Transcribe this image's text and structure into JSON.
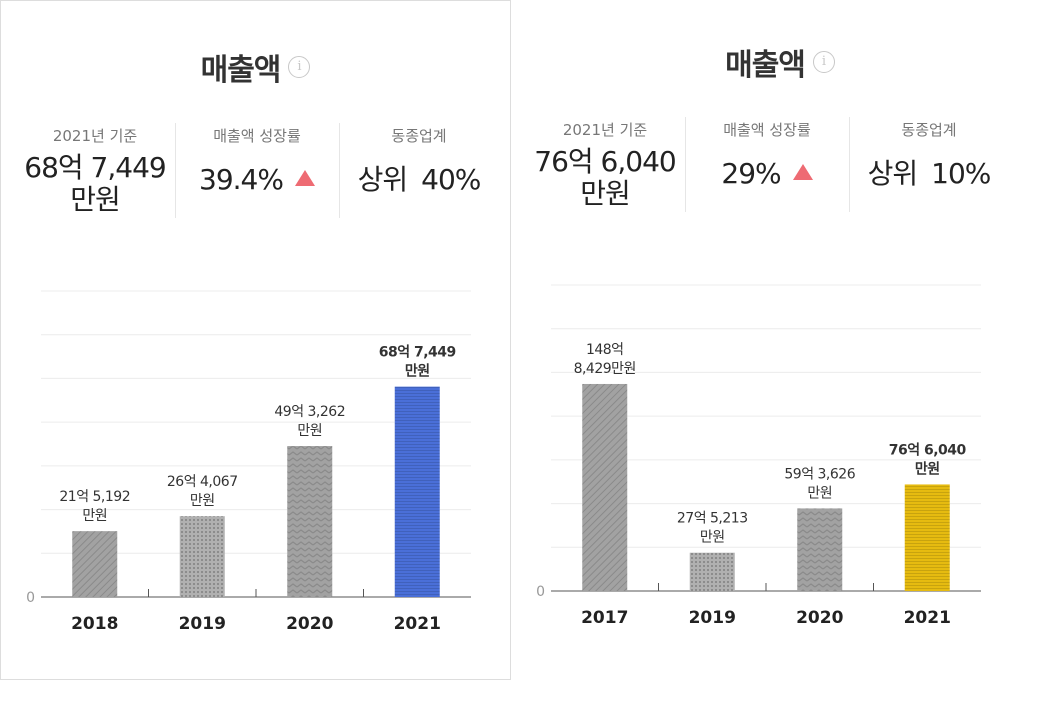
{
  "panels": [
    {
      "title": "매출액",
      "stats": {
        "base_label": "2021년 기준",
        "base_value": [
          "68억 7,449",
          "만원"
        ],
        "growth_label": "매출액 성장률",
        "growth_value": "39.4%",
        "rank_label": "동종업계",
        "rank_prefix": "상위",
        "rank_value": "40%"
      }
    },
    {
      "title": "매출액",
      "stats": {
        "base_label": "2021년 기준",
        "base_value": [
          "76억 6,040",
          "만원"
        ],
        "growth_label": "매출액 성장률",
        "growth_value": "29%",
        "rank_label": "동종업계",
        "rank_prefix": "상위",
        "rank_value": "10%"
      }
    }
  ],
  "chart_data": [
    {
      "type": "bar",
      "categories": [
        "2018",
        "2019",
        "2020",
        "2021"
      ],
      "values": [
        215192,
        264067,
        493262,
        687449
      ],
      "value_labels": [
        [
          "21억 5,192",
          "만원"
        ],
        [
          "26억 4,067",
          "만원"
        ],
        [
          "49억 3,262",
          "만원"
        ],
        [
          "68억 7,449",
          "만원"
        ]
      ],
      "unit": "만원",
      "y_tick_labels": [
        "0"
      ],
      "ylim": [
        0,
        1000000
      ],
      "grid": true,
      "highlight_index": 3,
      "colors": {
        "normal": "#a2a2a2",
        "highlight": "#4a6fd8",
        "highlight_label": "#4a6fd8"
      },
      "patterns": [
        "diagonal",
        "dots",
        "zigzag",
        "horizontal-lines"
      ]
    },
    {
      "type": "bar",
      "categories": [
        "2017",
        "2019",
        "2020",
        "2021"
      ],
      "values": [
        1488429,
        275213,
        593626,
        766040
      ],
      "value_labels": [
        [
          "148억",
          "8,429만원"
        ],
        [
          "27억 5,213",
          "만원"
        ],
        [
          "59억 3,626",
          "만원"
        ],
        [
          "76억 6,040",
          "만원"
        ]
      ],
      "unit": "만원",
      "y_tick_labels": [
        "0"
      ],
      "ylim": [
        0,
        2200000
      ],
      "grid": true,
      "highlight_index": 3,
      "colors": {
        "normal": "#a2a2a2",
        "highlight": "#e6bb10",
        "highlight_label": "#e6bb10"
      },
      "patterns": [
        "diagonal",
        "dots",
        "zigzag",
        "horizontal-lines"
      ]
    }
  ]
}
